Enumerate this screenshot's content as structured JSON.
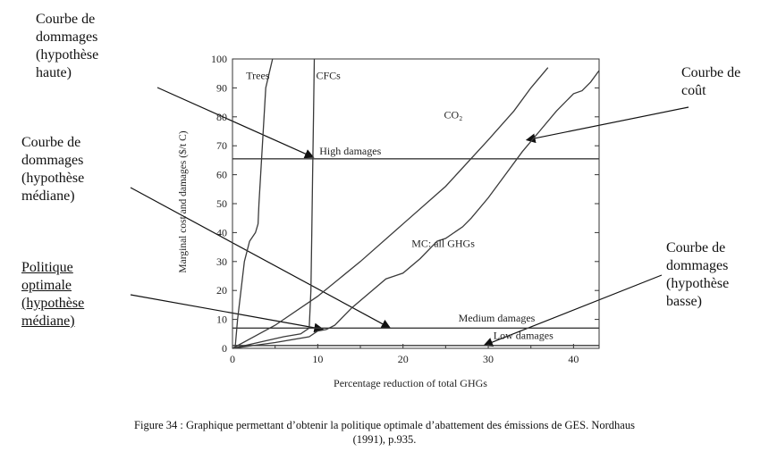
{
  "annotations": {
    "damage_high": "Courbe de\ndommages\n(hypothèse\nhaute)",
    "damage_mid": "Courbe de\ndommages\n(hypothèse\nmédiane)",
    "policy": "Politique\noptimale\n(hypothèse\nmédiane)",
    "cost": "Courbe de\ncoût",
    "damage_low": "Courbe de\ndommages\n(hypothèse\nbasse)"
  },
  "caption": {
    "line1": "Figure 34 : Graphique permettant d’obtenir la politique optimale d’abattement des émissions de GES. Nordhaus",
    "line2": "(1991), p.935."
  },
  "chart_data": {
    "type": "line",
    "xlabel": "Percentage reduction of total GHGs",
    "ylabel": "Marginal cost and damages ($/t C)",
    "xlim": [
      0,
      43
    ],
    "ylim": [
      0,
      100
    ],
    "xticks": [
      0,
      10,
      20,
      30,
      40
    ],
    "yticks": [
      0,
      10,
      20,
      30,
      40,
      50,
      60,
      70,
      80,
      90,
      100
    ],
    "grid": false,
    "series": [
      {
        "name": "Trees",
        "points": [
          [
            0.3,
            0
          ],
          [
            0.6,
            10
          ],
          [
            1.0,
            20
          ],
          [
            1.4,
            30
          ],
          [
            2.0,
            37
          ],
          [
            2.7,
            40
          ],
          [
            3.0,
            43
          ],
          [
            3.1,
            50
          ],
          [
            3.3,
            60
          ],
          [
            3.5,
            70
          ],
          [
            3.7,
            80
          ],
          [
            3.9,
            90
          ],
          [
            4.3,
            95
          ],
          [
            4.7,
            100
          ]
        ]
      },
      {
        "name": "CFCs",
        "points": [
          [
            0,
            0
          ],
          [
            3,
            2
          ],
          [
            6,
            4
          ],
          [
            8,
            5
          ],
          [
            9,
            7
          ],
          [
            9.2,
            20
          ],
          [
            9.3,
            40
          ],
          [
            9.4,
            60
          ],
          [
            9.5,
            80
          ],
          [
            9.6,
            100
          ]
        ]
      },
      {
        "name": "CO₂",
        "points": [
          [
            0,
            0
          ],
          [
            5,
            8
          ],
          [
            10,
            18
          ],
          [
            15,
            30
          ],
          [
            20,
            43
          ],
          [
            25,
            56
          ],
          [
            30,
            72
          ],
          [
            33,
            82
          ],
          [
            35,
            90
          ],
          [
            37,
            97
          ]
        ]
      },
      {
        "name": "MC: all GHGs",
        "points": [
          [
            0,
            0
          ],
          [
            5,
            2
          ],
          [
            9,
            4
          ],
          [
            10,
            6
          ],
          [
            11,
            6.5
          ],
          [
            12,
            8
          ],
          [
            14,
            14
          ],
          [
            16,
            19
          ],
          [
            18,
            24
          ],
          [
            19,
            25
          ],
          [
            20,
            26
          ],
          [
            22,
            31
          ],
          [
            24,
            37
          ],
          [
            25,
            38
          ],
          [
            27,
            42
          ],
          [
            28,
            45
          ],
          [
            30,
            52
          ],
          [
            32,
            60
          ],
          [
            34,
            68
          ],
          [
            36,
            75
          ],
          [
            38,
            82
          ],
          [
            40,
            88
          ],
          [
            41,
            89
          ],
          [
            42,
            92
          ],
          [
            43,
            96
          ]
        ]
      },
      {
        "name": "High damages",
        "points": [
          [
            0,
            65.5
          ],
          [
            43,
            65.5
          ]
        ]
      },
      {
        "name": "Medium damages",
        "points": [
          [
            0,
            7
          ],
          [
            43,
            7
          ]
        ]
      },
      {
        "name": "Low damages",
        "points": [
          [
            0,
            1
          ],
          [
            43,
            1
          ]
        ]
      }
    ],
    "labels": {
      "trees": "Trees",
      "cfcs": "CFCs",
      "co2": "CO₂",
      "mc": "MC: all GHGs",
      "high": "High damages",
      "medium": "Medium damages",
      "low": "Low damages"
    }
  }
}
